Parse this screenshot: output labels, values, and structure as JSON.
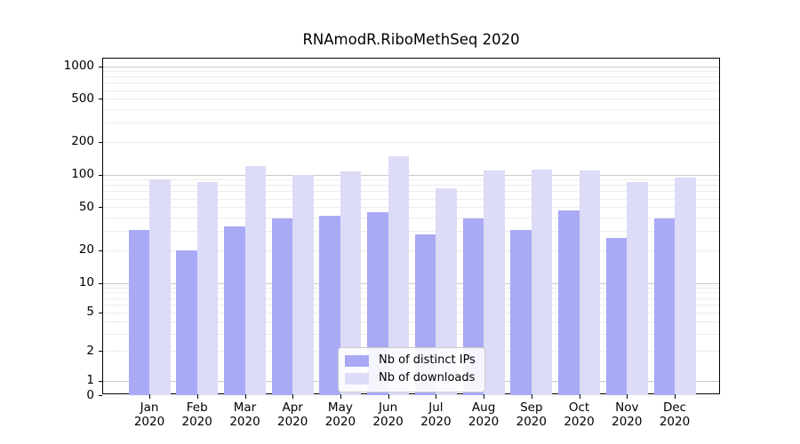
{
  "chart_data": {
    "type": "bar",
    "title": "RNAmodR.RiboMethSeq 2020",
    "categories": [
      "Jan",
      "Feb",
      "Mar",
      "Apr",
      "May",
      "Jun",
      "Jul",
      "Aug",
      "Sep",
      "Oct",
      "Nov",
      "Dec"
    ],
    "x_tick_second_line": "2020",
    "series": [
      {
        "name": "Nb of distinct IPs",
        "color": "#a9a9f6",
        "values": [
          31,
          20,
          33,
          39,
          42,
          45,
          28,
          39,
          31,
          47,
          26,
          39
        ]
      },
      {
        "name": "Nb of downloads",
        "color": "#dcdcf8",
        "values": [
          90,
          85,
          120,
          100,
          107,
          146,
          75,
          108,
          112,
          110,
          85,
          93
        ]
      }
    ],
    "yscale": "symlog",
    "ylim": [
      0,
      1000
    ],
    "y_ticks": [
      1000,
      500,
      200,
      100,
      50,
      20,
      10,
      5,
      2,
      1,
      0
    ],
    "grid": {
      "major": true,
      "minor": true
    },
    "legend": {
      "position": "lower-center",
      "entries": [
        "Nb of distinct IPs",
        "Nb of downloads"
      ]
    }
  },
  "colors": {
    "bar_distinct_ips": "#a9a9f6",
    "bar_downloads": "#dcdcf8",
    "grid_major": "#c9c9c9",
    "grid_minor": "#ececec",
    "axis": "#000000",
    "legend_border": "#cccccc",
    "background": "#ffffff"
  }
}
